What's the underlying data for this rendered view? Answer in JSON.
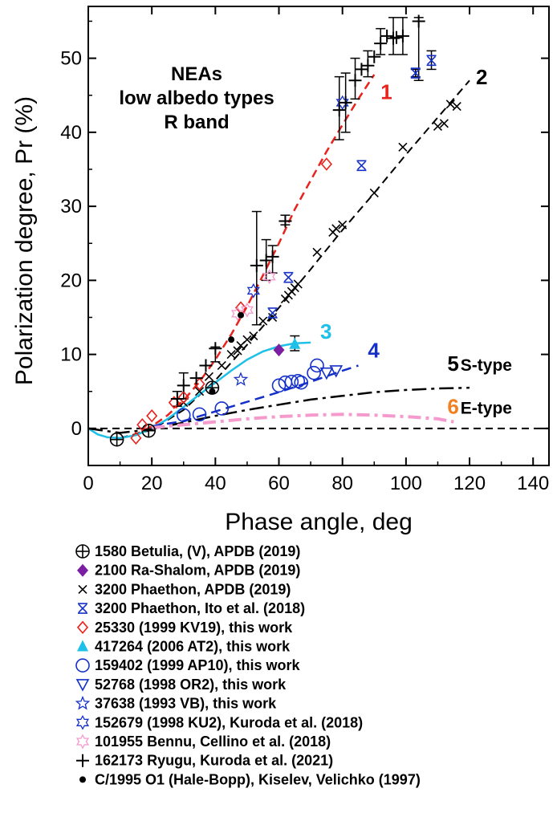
{
  "chart_data": {
    "type": "scatter",
    "xlabel": "Phase angle, deg",
    "ylabel": "Polarization degree, Pr (%)",
    "xlim": [
      0,
      145
    ],
    "ylim": [
      -5,
      57
    ],
    "xticks": [
      0,
      20,
      40,
      60,
      80,
      100,
      120,
      140
    ],
    "yticks": [
      0,
      10,
      20,
      30,
      40,
      50
    ],
    "annotation_lines": [
      "NEAs",
      "low albedo types",
      "R band"
    ],
    "curves": [
      {
        "label": "1",
        "color": "#e8221c",
        "points": [
          [
            10,
            -1.3
          ],
          [
            15,
            -0.8
          ],
          [
            20,
            0.3
          ],
          [
            25,
            1.8
          ],
          [
            30,
            3.8
          ],
          [
            35,
            6.3
          ],
          [
            40,
            9.3
          ],
          [
            45,
            12.7
          ],
          [
            50,
            16.5
          ],
          [
            55,
            20.7
          ],
          [
            60,
            25.0
          ],
          [
            65,
            29.6
          ],
          [
            70,
            33.5
          ],
          [
            75,
            37.4
          ],
          [
            80,
            41.0
          ],
          [
            85,
            44.5
          ],
          [
            90,
            47.8
          ]
        ]
      },
      {
        "label": "2",
        "color": "#000000",
        "points": [
          [
            10,
            -1.3
          ],
          [
            20,
            -0.2
          ],
          [
            30,
            2.5
          ],
          [
            40,
            6.5
          ],
          [
            50,
            11.3
          ],
          [
            60,
            16.3
          ],
          [
            70,
            21.5
          ],
          [
            80,
            26.8
          ],
          [
            90,
            31.8
          ],
          [
            100,
            37.0
          ],
          [
            110,
            42.0
          ],
          [
            120,
            47.0
          ]
        ]
      },
      {
        "label": "3",
        "color": "#1ec0e8",
        "points": [
          [
            0,
            0
          ],
          [
            3,
            -0.8
          ],
          [
            6,
            -1.2
          ],
          [
            10,
            -1.3
          ],
          [
            15,
            -0.9
          ],
          [
            20,
            0
          ],
          [
            25,
            1.3
          ],
          [
            30,
            2.9
          ],
          [
            35,
            4.6
          ],
          [
            40,
            6.2
          ],
          [
            45,
            7.8
          ],
          [
            50,
            9.3
          ],
          [
            55,
            10.4
          ],
          [
            60,
            11.1
          ],
          [
            65,
            11.5
          ],
          [
            70,
            11.6
          ]
        ]
      },
      {
        "label": "4",
        "color": "#1530c8",
        "points": [
          [
            20,
            0.3
          ],
          [
            30,
            1.0
          ],
          [
            40,
            2.3
          ],
          [
            50,
            3.6
          ],
          [
            60,
            4.9
          ],
          [
            70,
            6.3
          ],
          [
            80,
            7.8
          ],
          [
            85,
            8.5
          ]
        ]
      },
      {
        "label": "5",
        "color": "#000000",
        "points": [
          [
            0,
            0
          ],
          [
            10,
            -0.6
          ],
          [
            20,
            -0.1
          ],
          [
            30,
            0.8
          ],
          [
            40,
            1.7
          ],
          [
            50,
            2.5
          ],
          [
            60,
            3.2
          ],
          [
            70,
            3.9
          ],
          [
            80,
            4.4
          ],
          [
            90,
            4.9
          ],
          [
            100,
            5.2
          ],
          [
            110,
            5.4
          ],
          [
            120,
            5.5
          ]
        ]
      },
      {
        "label": "6",
        "color": "#f59acd",
        "points": [
          [
            20,
            0.1
          ],
          [
            30,
            0.5
          ],
          [
            40,
            0.9
          ],
          [
            50,
            1.3
          ],
          [
            60,
            1.6
          ],
          [
            70,
            1.8
          ],
          [
            80,
            1.9
          ],
          [
            90,
            1.8
          ],
          [
            100,
            1.6
          ],
          [
            110,
            1.3
          ],
          [
            115,
            0.9
          ]
        ]
      }
    ],
    "curve_annotations": [
      {
        "label": "1",
        "color": "#e8221c",
        "x": 92,
        "y": 44.5
      },
      {
        "label": "2",
        "color": "#000000",
        "x": 122,
        "y": 46.5
      },
      {
        "label": "3",
        "color": "#1ec0e8",
        "x": 73,
        "y": 12.1
      },
      {
        "label": "4",
        "color": "#1530c8",
        "x": 88,
        "y": 9.6
      },
      {
        "label": "5",
        "color": "#000000",
        "x": 113,
        "y": 7.8,
        "suffix": "S-type"
      },
      {
        "label": "6",
        "color": "#f08020",
        "x": 113,
        "y": 2.0,
        "suffix": "E-type"
      }
    ],
    "series": [
      {
        "name": "1580 Betulia, (V), APDB (2019)",
        "marker": "circle-plus",
        "color": "#000000",
        "points": [
          [
            9,
            -1.5
          ],
          [
            19,
            -0.3
          ],
          [
            39,
            5.5
          ]
        ]
      },
      {
        "name": "2100 Ra-Shalom, APDB (2019)",
        "marker": "diamond-filled",
        "color": "#7b1fa2",
        "points": [
          [
            60,
            10.6
          ]
        ]
      },
      {
        "name": "3200 Phaethon, APDB (2019)",
        "marker": "x",
        "color": "#000000",
        "points": [
          [
            30,
            3.5
          ],
          [
            35,
            5.0
          ],
          [
            38,
            7.0
          ],
          [
            42,
            8.5
          ],
          [
            45,
            10.0
          ],
          [
            47,
            10.5
          ],
          [
            48,
            11.2
          ],
          [
            50,
            12.0
          ],
          [
            52,
            12.5
          ],
          [
            55,
            14.5
          ],
          [
            58,
            15.0
          ],
          [
            62,
            17.5
          ],
          [
            63,
            18.0
          ],
          [
            64,
            18.5
          ],
          [
            65,
            19.0
          ],
          [
            66,
            19.5
          ],
          [
            72,
            23.8
          ],
          [
            77,
            26.5
          ],
          [
            78,
            27.0
          ],
          [
            80,
            27.5
          ],
          [
            90,
            31.8
          ],
          [
            99,
            38.0
          ],
          [
            110,
            40.8
          ],
          [
            112,
            41.2
          ],
          [
            114,
            43.8
          ],
          [
            116,
            43.5
          ]
        ]
      },
      {
        "name": "3200 Phaethon, Ito et al. (2018)",
        "marker": "x-bar",
        "color": "#1530c8",
        "points": [
          [
            58,
            15.6
          ],
          [
            63,
            20.4
          ],
          [
            86,
            35.5
          ],
          [
            103,
            48.0
          ],
          [
            108,
            49.7
          ]
        ]
      },
      {
        "name": "25330 (1999 KV19), this work",
        "marker": "diamond-open",
        "color": "#e8221c",
        "points": [
          [
            15,
            -1.3
          ],
          [
            17,
            0.5
          ],
          [
            20,
            1.7
          ],
          [
            27,
            3.5
          ],
          [
            30,
            4.2
          ],
          [
            35,
            6.0
          ],
          [
            48,
            16.3
          ],
          [
            75,
            35.7
          ]
        ]
      },
      {
        "name": "417264 (2006 AT2), this work",
        "marker": "triangle-filled",
        "color": "#1ec0e8",
        "points": [
          [
            65,
            11.4
          ]
        ]
      },
      {
        "name": "159402 (1999 AP10), this work",
        "marker": "circle-open",
        "color": "#1530c8",
        "points": [
          [
            30,
            1.8
          ],
          [
            35,
            1.9
          ],
          [
            42,
            2.7
          ],
          [
            60,
            5.8
          ],
          [
            62,
            6.2
          ],
          [
            64,
            6.3
          ],
          [
            66,
            6.4
          ],
          [
            67,
            6.2
          ],
          [
            71,
            7.5
          ],
          [
            72,
            8.5
          ]
        ]
      },
      {
        "name": "52768 (1998 OR2), this work",
        "marker": "triangle-down-open",
        "color": "#1530c8",
        "points": [
          [
            75,
            7.5
          ],
          [
            78,
            7.8
          ]
        ]
      },
      {
        "name": "37638 (1993 VB), this work",
        "marker": "star5-open",
        "color": "#1530c8",
        "points": [
          [
            48,
            6.6
          ]
        ]
      },
      {
        "name": "152679 (1998 KU2), Kuroda et al. (2018)",
        "marker": "star6-open",
        "color": "#1530c8",
        "points": [
          [
            52,
            18.6
          ],
          [
            80,
            44.0
          ]
        ]
      },
      {
        "name": "101955 Bennu, Cellino et al. (2018)",
        "marker": "star6-open",
        "color": "#f59acd",
        "points": [
          [
            47,
            15.5
          ],
          [
            50,
            16.0
          ],
          [
            57,
            20.5
          ]
        ]
      },
      {
        "name": "162173 Ryugu, Kuroda et al. (2021)",
        "marker": "plus",
        "color": "#000000",
        "points": [
          [
            28,
            4.0
          ],
          [
            30,
            5.8
          ],
          [
            34,
            6.8
          ],
          [
            37,
            8.5
          ],
          [
            40,
            10.8
          ],
          [
            53,
            22.0
          ],
          [
            56,
            22.7
          ],
          [
            58,
            23.2
          ],
          [
            62,
            28.0
          ],
          [
            79,
            43.0
          ],
          [
            81,
            44.0
          ],
          [
            84,
            47.0
          ],
          [
            86,
            48.5
          ],
          [
            88,
            49.0
          ],
          [
            90,
            50.2
          ],
          [
            92,
            52.0
          ],
          [
            94,
            53.0
          ],
          [
            96,
            52.7
          ],
          [
            97,
            52.8
          ],
          [
            99,
            53.0
          ],
          [
            104,
            55.0
          ]
        ]
      },
      {
        "name": "C/1995 O1 (Hale-Bopp), Kiselev, Velichko (1997)",
        "marker": "dot",
        "color": "#000000",
        "points": [
          [
            39,
            5.0
          ],
          [
            45,
            12.0
          ],
          [
            48,
            15.3
          ]
        ]
      }
    ],
    "error_bars": [
      {
        "x": 79,
        "low": 39.0,
        "high": 47.5
      },
      {
        "x": 81,
        "low": 40.0,
        "high": 48.0
      },
      {
        "x": 84,
        "low": 44.5,
        "high": 50.0
      },
      {
        "x": 88,
        "low": 47.5,
        "high": 51.0
      },
      {
        "x": 92,
        "low": 50.5,
        "high": 54.0
      },
      {
        "x": 96,
        "low": 50.5,
        "high": 55.5
      },
      {
        "x": 99,
        "low": 50.5,
        "high": 55.5
      },
      {
        "x": 104,
        "low": 47.0,
        "high": 55.5
      },
      {
        "x": 53,
        "low": 14.0,
        "high": 29.3
      },
      {
        "x": 56,
        "low": 20.0,
        "high": 25.5
      },
      {
        "x": 58,
        "low": 21.0,
        "high": 24.7
      },
      {
        "x": 62,
        "low": 27.5,
        "high": 28.8
      },
      {
        "x": 40,
        "low": 9.0,
        "high": 11.0
      },
      {
        "x": 30,
        "low": 4.0,
        "high": 7.5
      },
      {
        "x": 28,
        "low": 3.0,
        "high": 5.0
      },
      {
        "x": 65,
        "low": 10.5,
        "high": 12.5
      },
      {
        "x": 108,
        "low": 48.5,
        "high": 51.0
      },
      {
        "x": 103,
        "low": 47.5,
        "high": 48.5
      }
    ],
    "grid": false,
    "legend_position": "below-plot"
  }
}
